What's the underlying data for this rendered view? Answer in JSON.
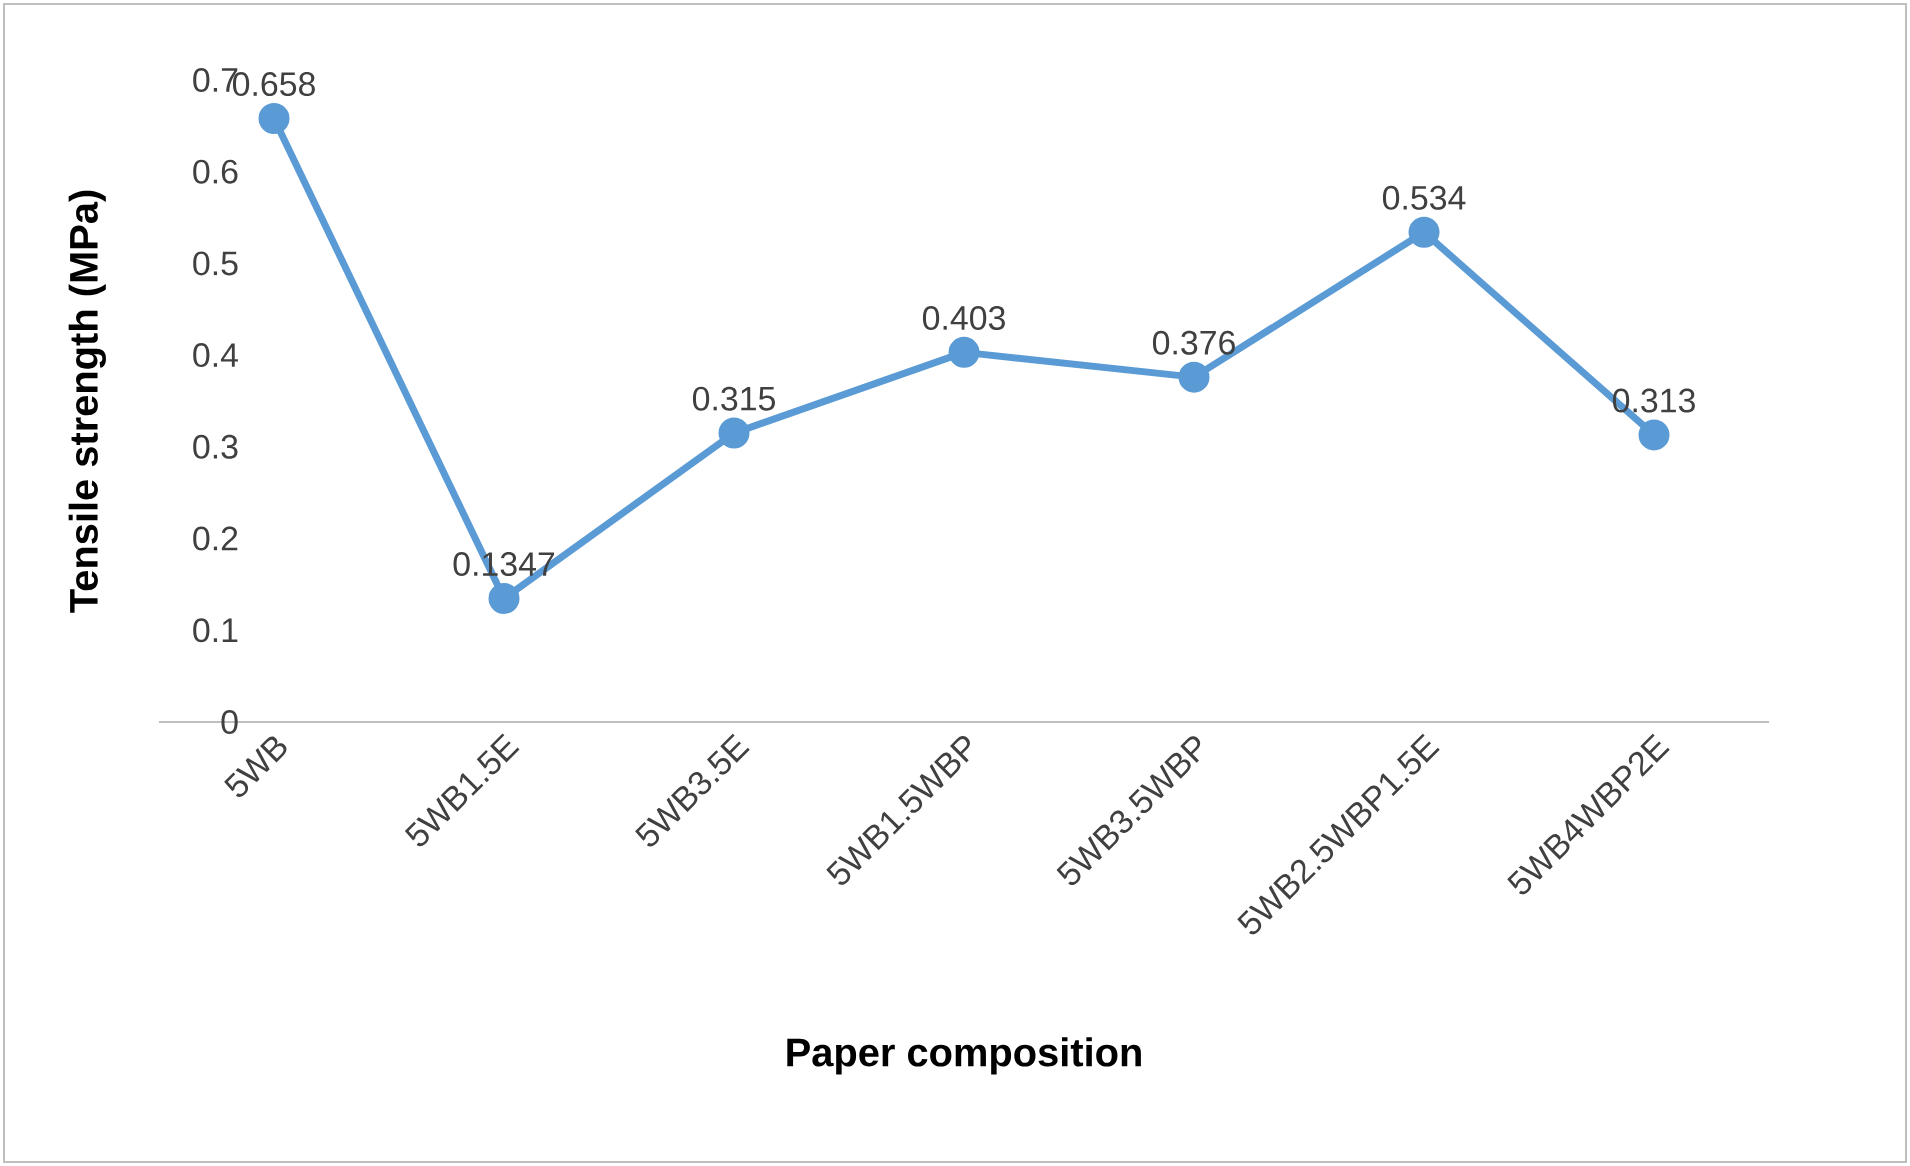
{
  "chart_data": {
    "type": "line",
    "xlabel": "Paper composition",
    "ylabel": "Tensile strength (MPa)",
    "categories": [
      "5WB",
      "5WB1.5E",
      "5WB3.5E",
      "5WB1.5WBP",
      "5WB3.5WBP",
      "5WB2.5WBP1.5E",
      "5WB4WBP2E"
    ],
    "values": [
      0.658,
      0.1347,
      0.315,
      0.403,
      0.376,
      0.534,
      0.313
    ],
    "color": "#5b9bd5",
    "marker": "circle",
    "line_style": "solid",
    "data_labels": true,
    "grid": false,
    "ylim": [
      0,
      0.7
    ],
    "yticks": [
      0,
      0.1,
      0.2,
      0.3,
      0.4,
      0.5,
      0.6,
      0.7
    ]
  }
}
